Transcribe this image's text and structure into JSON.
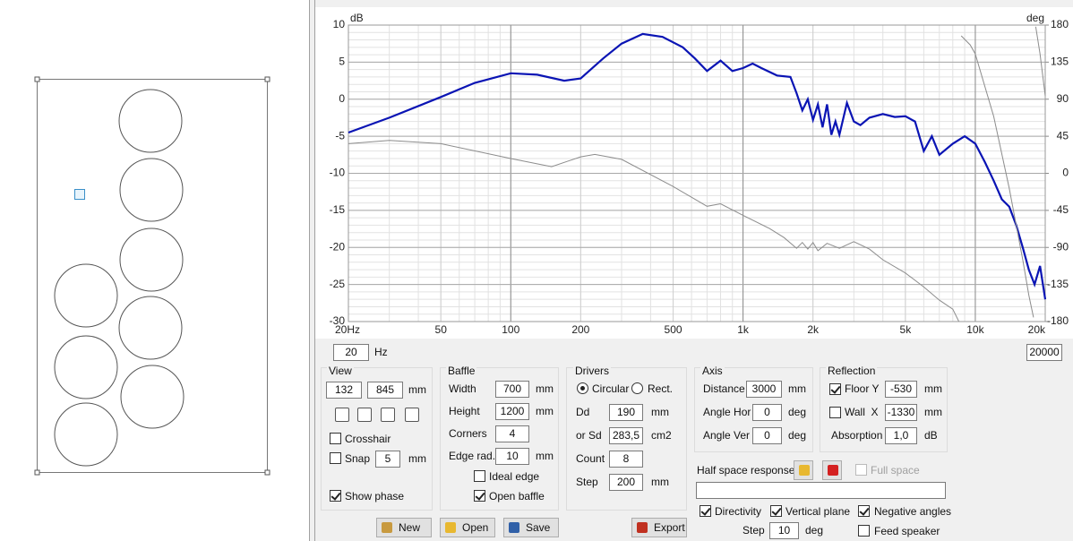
{
  "chart": {
    "type": "line",
    "y_label": "dB",
    "y2_label": "deg",
    "xscale": "log",
    "xlim": [
      20,
      20000
    ],
    "ylim": [
      -30,
      10
    ],
    "y2lim": [
      -180,
      180
    ],
    "xticks": [
      {
        "value": 20,
        "label": "20Hz"
      },
      50,
      100,
      200,
      500,
      {
        "value": 1000,
        "label": "1k"
      },
      {
        "value": 2000,
        "label": "2k"
      },
      {
        "value": 5000,
        "label": "5k"
      },
      {
        "value": 10000,
        "label": "10k"
      },
      {
        "value": 20000,
        "label": "20k"
      }
    ],
    "yticks": [
      10,
      5,
      0,
      -5,
      -10,
      -15,
      -20,
      -25,
      -30
    ],
    "y2ticks": [
      180,
      135,
      90,
      45,
      0,
      -45,
      -90,
      -135,
      -180
    ],
    "grid": true,
    "minor_grid": true,
    "series": [
      {
        "color": "#0a14b4",
        "x": [
          20,
          30,
          50,
          70,
          100,
          130,
          170,
          200,
          250,
          300,
          370,
          450,
          550,
          620,
          700,
          800,
          900,
          1000,
          1100,
          1200,
          1400,
          1600,
          1700,
          1800,
          1900,
          2000,
          2100,
          2200,
          2300,
          2400,
          2500,
          2600,
          2800,
          3000,
          3200,
          3500,
          4000,
          4500,
          5000,
          5500,
          6000,
          6500,
          7000,
          8000,
          9000,
          10000,
          11000,
          12000,
          13000,
          14000,
          15000,
          16000,
          17000,
          18000,
          19000,
          20000
        ],
        "values": [
          -4.5,
          -2.5,
          0.3,
          2.2,
          3.5,
          3.3,
          2.5,
          2.8,
          5.5,
          7.5,
          8.8,
          8.4,
          7,
          5.5,
          3.8,
          5.2,
          3.8,
          4.2,
          4.8,
          4.2,
          3.2,
          3,
          0.8,
          -1.5,
          0,
          -2.8,
          -0.7,
          -3.8,
          -0.7,
          -4.8,
          -3,
          -4.8,
          -0.5,
          -3,
          -3.5,
          -2.5,
          -2,
          -2.4,
          -2.3,
          -3,
          -7,
          -5,
          -7.5,
          -6,
          -5,
          -6,
          -8.5,
          -11,
          -13.5,
          -14.5,
          -17,
          -20,
          -23,
          -25,
          -22.5,
          -27
        ]
      },
      {
        "color": "#8c8c8c",
        "axis": "y2",
        "x": [
          20,
          30,
          50,
          100,
          150,
          200,
          230,
          300,
          500,
          700,
          800,
          1000,
          1300,
          1500,
          1700,
          1800,
          1900,
          2000,
          2100,
          2300,
          2600,
          3000,
          3500,
          4000,
          5000,
          6000,
          7000,
          8000,
          8500,
          8600,
          8700,
          9500,
          10000,
          12000,
          14000,
          16000,
          17000,
          17800,
          18000,
          18200,
          19000,
          20000
        ],
        "values": [
          36,
          40,
          36,
          18,
          8,
          20,
          23,
          17,
          -16,
          -40,
          -37,
          -51,
          -67,
          -78,
          -91,
          -84,
          -92,
          -84,
          -94,
          -85,
          -91,
          -83,
          -92,
          -105,
          -121,
          -138,
          -154,
          -165,
          -180,
          null,
          167,
          156,
          145,
          69,
          -18,
          -105,
          -148,
          -175,
          null,
          178,
          145,
          94
        ]
      }
    ]
  },
  "frequency_range": {
    "from": "20",
    "unit": "Hz",
    "to": "20000"
  },
  "view": {
    "title": "View",
    "x": "132",
    "y": "845",
    "unit": "mm",
    "crosshair": {
      "label": "Crosshair",
      "checked": false
    },
    "snap": {
      "label": "Snap",
      "checked": false,
      "value": "5",
      "unit": "mm"
    },
    "show_phase": {
      "label": "Show phase",
      "checked": true
    }
  },
  "baffle": {
    "title": "Baffle",
    "width": {
      "label": "Width",
      "value": "700",
      "unit": "mm"
    },
    "height": {
      "label": "Height",
      "value": "1200",
      "unit": "mm"
    },
    "corners": {
      "label": "Corners",
      "value": "4"
    },
    "edge_radius": {
      "label": "Edge rad.",
      "value": "10",
      "unit": "mm"
    },
    "ideal_edge": {
      "label": "Ideal edge",
      "checked": false
    },
    "open_baffle": {
      "label": "Open baffle",
      "checked": true
    }
  },
  "drivers": {
    "title": "Drivers",
    "circular": {
      "label": "Circular",
      "selected": true
    },
    "rect": {
      "label": "Rect.",
      "selected": false
    },
    "dd": {
      "label": "Dd",
      "value": "190",
      "unit": "mm"
    },
    "sd": {
      "label": "or Sd",
      "value": "283,5",
      "unit": "cm2"
    },
    "count": {
      "label": "Count",
      "value": "8"
    },
    "step": {
      "label": "Step",
      "value": "200",
      "unit": "mm"
    }
  },
  "axis": {
    "title": "Axis",
    "distance": {
      "label": "Distance",
      "value": "3000",
      "unit": "mm"
    },
    "angle_hor": {
      "label": "Angle Hor",
      "value": "0",
      "unit": "deg"
    },
    "angle_ver": {
      "label": "Angle Ver",
      "value": "0",
      "unit": "deg"
    }
  },
  "reflection": {
    "title": "Reflection",
    "floor": {
      "label": "Floor Y",
      "checked": true,
      "value": "-530",
      "unit": "mm"
    },
    "wall": {
      "label": "Wall  X",
      "checked": false,
      "value": "-1330",
      "unit": "mm"
    },
    "absorption": {
      "label": "Absorption",
      "value": "1,0",
      "unit": "dB"
    }
  },
  "half_space": {
    "label": "Half space response",
    "full_space": {
      "label": "Full space",
      "checked": false
    }
  },
  "options": {
    "directivity": {
      "label": "Directivity",
      "checked": true
    },
    "vertical_plane": {
      "label": "Vertical plane",
      "checked": true
    },
    "negative_angles": {
      "label": "Negative angles",
      "checked": true
    },
    "step": {
      "label": "Step",
      "value": "10",
      "unit": "deg"
    },
    "feed_speaker": {
      "label": "Feed speaker",
      "checked": false
    }
  },
  "buttons": {
    "new": "New",
    "open": "Open",
    "save": "Save",
    "export": "Export"
  }
}
